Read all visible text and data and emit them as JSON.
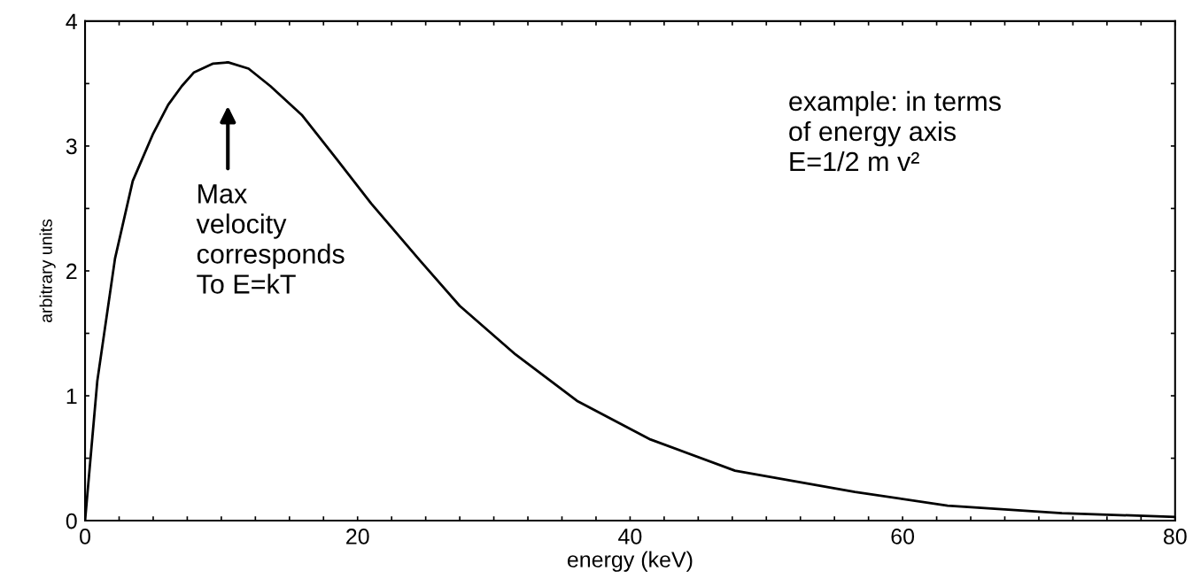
{
  "chart_data": {
    "type": "line",
    "xlabel": "energy (keV)",
    "ylabel": "arbitrary units",
    "x": [
      0,
      0.9,
      2.2,
      3.5,
      5,
      6.1,
      7.1,
      8,
      9.4,
      10.5,
      12,
      13.6,
      15.9,
      18.5,
      21,
      24.6,
      27.5,
      31.6,
      36.1,
      41.5,
      47.7,
      56.5,
      63.3,
      71.7,
      80
    ],
    "series": [
      {
        "color": "#000000",
        "values": [
          0,
          1.12,
          2.1,
          2.72,
          3.1,
          3.33,
          3.48,
          3.59,
          3.66,
          3.67,
          3.62,
          3.48,
          3.25,
          2.89,
          2.54,
          2.08,
          1.72,
          1.33,
          0.96,
          0.65,
          0.4,
          0.23,
          0.12,
          0.06,
          0.03
        ]
      }
    ],
    "xlim": [
      0,
      80
    ],
    "ylim": [
      0,
      4
    ],
    "xticks": [
      0,
      {
        "value": 2.5,
        "label": null
      },
      {
        "value": 5,
        "label": null
      },
      {
        "value": 7.5,
        "label": null
      },
      {
        "value": 10,
        "label": null
      },
      {
        "value": 12.5,
        "label": null
      },
      {
        "value": 15,
        "label": null
      },
      {
        "value": 17.5,
        "label": null
      },
      20,
      {
        "value": 22.5,
        "label": null
      },
      {
        "value": 25,
        "label": null
      },
      {
        "value": 27.5,
        "label": null
      },
      {
        "value": 30,
        "label": null
      },
      {
        "value": 32.5,
        "label": null
      },
      {
        "value": 35,
        "label": null
      },
      {
        "value": 37.5,
        "label": null
      },
      40,
      {
        "value": 42.5,
        "label": null
      },
      {
        "value": 45,
        "label": null
      },
      {
        "value": 47.5,
        "label": null
      },
      {
        "value": 50,
        "label": null
      },
      {
        "value": 52.5,
        "label": null
      },
      {
        "value": 55,
        "label": null
      },
      {
        "value": 57.5,
        "label": null
      },
      60,
      {
        "value": 62.5,
        "label": null
      },
      {
        "value": 65,
        "label": null
      },
      {
        "value": 67.5,
        "label": null
      },
      {
        "value": 70,
        "label": null
      },
      {
        "value": 72.5,
        "label": null
      },
      {
        "value": 75,
        "label": null
      },
      {
        "value": 77.5,
        "label": null
      },
      80
    ],
    "yticks": [
      0,
      {
        "value": 0.5,
        "label": null
      },
      1,
      {
        "value": 1.5,
        "label": null
      },
      2,
      {
        "value": 2.5,
        "label": null
      },
      3,
      {
        "value": 3.5,
        "label": null
      },
      4
    ],
    "grid": false,
    "legend": false,
    "marker": "none",
    "line_style": "solid",
    "annotations": [
      "Max\nvelocity\ncorresponds\nTo E=kT",
      "example: in terms\nof energy axis\nE=1/2 m v²"
    ]
  }
}
